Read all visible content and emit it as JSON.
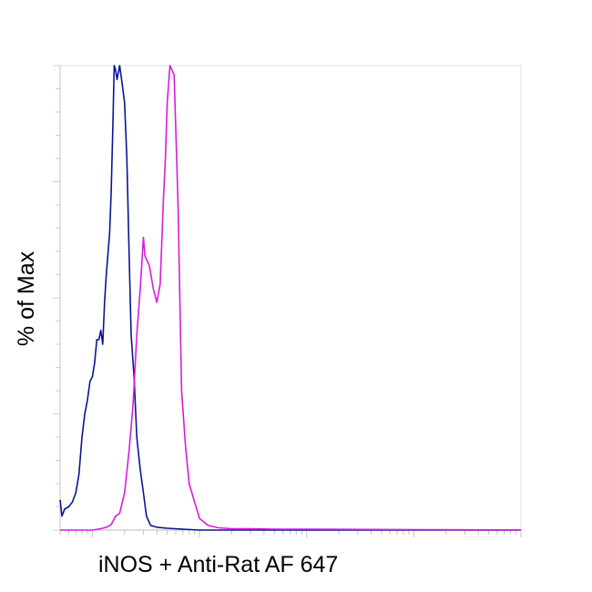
{
  "chart_data": {
    "type": "line",
    "title": "",
    "xlabel": "iNOS + Anti-Rat AF 647",
    "ylabel": "% of Max",
    "xscale": "log",
    "xlim": [
      0.5,
      10000
    ],
    "ylim": [
      0,
      100
    ],
    "grid": false,
    "legend": "none",
    "series": [
      {
        "color": "#0a1496",
        "x": [
          0.5,
          0.52,
          0.55,
          0.6,
          0.65,
          0.7,
          0.75,
          0.8,
          0.85,
          0.9,
          0.95,
          1.0,
          1.05,
          1.1,
          1.15,
          1.2,
          1.25,
          1.3,
          1.35,
          1.45,
          1.5,
          1.55,
          1.6,
          1.65,
          1.7,
          1.8,
          1.9,
          2.0,
          2.1,
          2.2,
          2.3,
          2.45,
          2.6,
          2.8,
          3.0,
          3.2,
          3.5,
          4.0,
          5.0,
          7.0,
          10,
          100,
          1000,
          10000
        ],
        "y": [
          6.5,
          3,
          4.5,
          5,
          6,
          8,
          12,
          20,
          25,
          28,
          32,
          33,
          36,
          41,
          41,
          43,
          40,
          49,
          55,
          64,
          73,
          86,
          100,
          99,
          97,
          100,
          96,
          92,
          80,
          60,
          42,
          33,
          20,
          13,
          8,
          3,
          1,
          0.6,
          0.4,
          0.2,
          0,
          0,
          0,
          0
        ]
      },
      {
        "color": "#d81cd8",
        "x": [
          0.5,
          1,
          1.2,
          1.35,
          1.5,
          1.65,
          1.8,
          2.0,
          2.2,
          2.4,
          2.6,
          2.8,
          3.0,
          3.1,
          3.4,
          3.7,
          4.0,
          4.3,
          4.6,
          4.8,
          5.0,
          5.3,
          5.8,
          6.3,
          6.8,
          7.4,
          8.0,
          9.0,
          10,
          12,
          15,
          20,
          30,
          50,
          100,
          1000,
          10000
        ],
        "y": [
          0,
          0,
          0.3,
          0.6,
          1.2,
          3,
          3.6,
          8,
          17,
          27,
          42,
          52,
          63,
          59,
          57,
          52,
          49,
          53,
          71,
          80,
          92,
          100,
          98,
          70,
          30,
          18,
          10,
          6,
          2.5,
          1,
          0.5,
          0.3,
          0.3,
          0.2,
          0.2,
          0.1,
          0
        ]
      }
    ]
  }
}
